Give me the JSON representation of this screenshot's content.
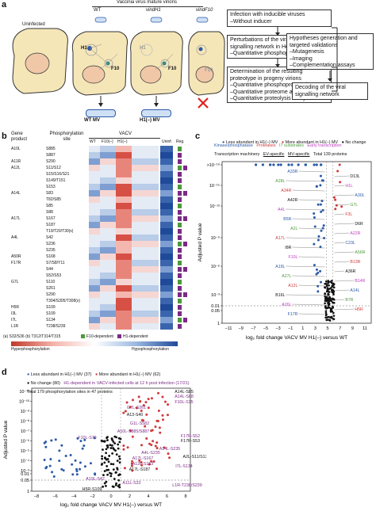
{
  "panel_a": {
    "label": "a",
    "virion_header": "Vaccinia virus mature virions",
    "uninfected": "Uninfected",
    "strains": [
      "WT",
      "vindH1",
      "vindF10"
    ],
    "h1": "H1",
    "f10": "F10",
    "mv_labels": [
      "WT MV",
      "H1(–) MV"
    ],
    "box1": [
      "Infection with inducible viruses",
      "–Without inducer"
    ],
    "box2": [
      "Perturbations of the viral",
      "signalling network in HeLa cells",
      "–Quantitative phosphoproteomics"
    ],
    "box3": [
      "Determination of the resulting",
      "proteotype in progeny virions",
      "–Quantitative phosphoproteomics",
      "–Quantitative proteome analysis",
      "–Quantitative proteolysis analysis"
    ],
    "box4": [
      "Hypotheses generation and",
      "targeted validations",
      "–Mutagenesis",
      "–Imaging",
      "–Complementation assays"
    ],
    "box5": [
      "Decoding of the viral",
      "signalling network"
    ]
  },
  "panel_b": {
    "label": "b",
    "col_gene": [
      "Gene",
      "product"
    ],
    "col_site": [
      "Phosphorylation",
      "site"
    ],
    "vacv": "VACV",
    "sub_cols": [
      "WT",
      "F10(–)",
      "H1(–)",
      "Uninf.",
      "Reg."
    ],
    "rows": [
      {
        "gene": "A10L",
        "site": "S885"
      },
      {
        "gene": "",
        "site": "S887"
      },
      {
        "gene": "A11R",
        "site": "S290"
      },
      {
        "gene": "A12L",
        "site": "S11/S12"
      },
      {
        "gene": "",
        "site": "S15/S16/S21"
      },
      {
        "gene": "",
        "site": "S149/T151"
      },
      {
        "gene": "",
        "site": "S153"
      },
      {
        "gene": "A14L",
        "site": "S83"
      },
      {
        "gene": "",
        "site": "T82/S85"
      },
      {
        "gene": "",
        "site": "S85"
      },
      {
        "gene": "",
        "site": "S88"
      },
      {
        "gene": "A17L",
        "site": "S167"
      },
      {
        "gene": "",
        "site": "S187"
      },
      {
        "gene": "",
        "site": "T19/T20/T30(x)"
      },
      {
        "gene": "A4L",
        "site": "S42"
      },
      {
        "gene": "",
        "site": "S236"
      },
      {
        "gene": "",
        "site": "S235"
      },
      {
        "gene": "A50R",
        "site": "S168"
      },
      {
        "gene": "F17R",
        "site": "S7/S8/Y11"
      },
      {
        "gene": "",
        "site": "S44"
      },
      {
        "gene": "",
        "site": "S52/S53"
      },
      {
        "gene": "G7L",
        "site": "S110"
      },
      {
        "gene": "",
        "site": "S261"
      },
      {
        "gene": "",
        "site": "S290"
      },
      {
        "gene": "",
        "site": "T304/S305/T308(x)"
      },
      {
        "gene": "H5R",
        "site": "S109"
      },
      {
        "gene": "I3L",
        "site": "S109"
      },
      {
        "gene": "I7L",
        "site": "S134"
      },
      {
        "gene": "L1R",
        "site": "T238/S239"
      }
    ],
    "footnote": "(a) S32/S36   (b) T312/T314/T315",
    "legend_f10": "F10-dependent",
    "legend_h1": "H1-dependent",
    "scale_low": "Hyperphosphorylation",
    "scale_high": "Hypophosphorylation",
    "colors": {
      "blue": "#2b5aa8",
      "red": "#d03a3a",
      "green": "#4c9a3c",
      "purple": "#7b2a86"
    }
  },
  "panel_c": {
    "label": "c",
    "legend": [
      "Less abundant in H1(–) MV",
      "More abundant in H1(–) MV",
      "No change"
    ],
    "categories": [
      "Kinase/phosphatase",
      "Proteases",
      "I7 substrates",
      "Early transcription",
      "Transcription machinery",
      "EV-specific",
      "MV-specific"
    ],
    "total": "Total 139 proteins",
    "ylabel": "Adjusted P value",
    "xlabel": "log₂ fold change VACV MV H1(–) versus WT",
    "yticks": [
      ">10⁻¹⁹",
      "10⁻¹⁵",
      "10⁻¹²",
      "10⁻⁹",
      "10⁻⁶",
      "10⁻³",
      "0.01",
      "0.05",
      "1"
    ],
    "xticks": [
      "−11",
      "−9",
      "−7",
      "−5",
      "−3",
      "−1",
      "1",
      "3",
      "5",
      "7",
      "9",
      "11"
    ],
    "labels": [
      "A33R",
      "D13L",
      "A28L",
      "H1L",
      "A34R",
      "A30L",
      "A42R",
      "G7L",
      "A4L",
      "F3L",
      "B5R",
      "D6R",
      "A2L",
      "A22R",
      "A17L",
      "C23L",
      "I8R",
      "A56R",
      "F10L",
      "B13R",
      "A19L",
      "A36R",
      "A27L",
      "B14R",
      "A12L",
      "A14L",
      "B16L",
      "B7R",
      "A26L",
      "H5R",
      "F17R"
    ]
  },
  "panel_d": {
    "label": "d",
    "legend": [
      "Less abundant in H1(–) MV (37)",
      "More abundant in H1(–) MV (62)",
      "No change (80)",
      "H1-dependent in VACV-infected cells at 12 h post infection (17/21)"
    ],
    "total": "Total 179 phosphorylation sites in 47 proteins",
    "ylabel": "Adjusted P value",
    "xlabel": "log₂ fold change VACV MV H1(–) versus WT",
    "yticks": [
      "10⁻¹¹",
      "10⁻¹⁰",
      "10⁻⁹",
      "10⁻⁸",
      "10⁻⁷",
      "10⁻⁶",
      "10⁻⁵",
      "10⁻⁴",
      "10⁻³",
      "0.01",
      "0.05",
      "1"
    ],
    "xticks": [
      "−8",
      "−6",
      "−4",
      "−2",
      "0",
      "2",
      "4",
      "6",
      "8"
    ],
    "site_labels": [
      "A14L-S85",
      "A14L-S88",
      "F10L-S15",
      "G7L-S261",
      "A13-S40",
      "G1L-S582",
      "A10L-S885/S887",
      "F17R-S52",
      "F17R-S53",
      "F10L-S70",
      "A14L-S235",
      "A4L-S235",
      "A2L-S11/S12",
      "A17L-S167",
      "I7L-S134",
      "A12L-S153",
      "A17L-S187",
      "A19L-S42",
      "A11L-S32",
      "L1R-T238/S239",
      "H5R-S109"
    ]
  }
}
